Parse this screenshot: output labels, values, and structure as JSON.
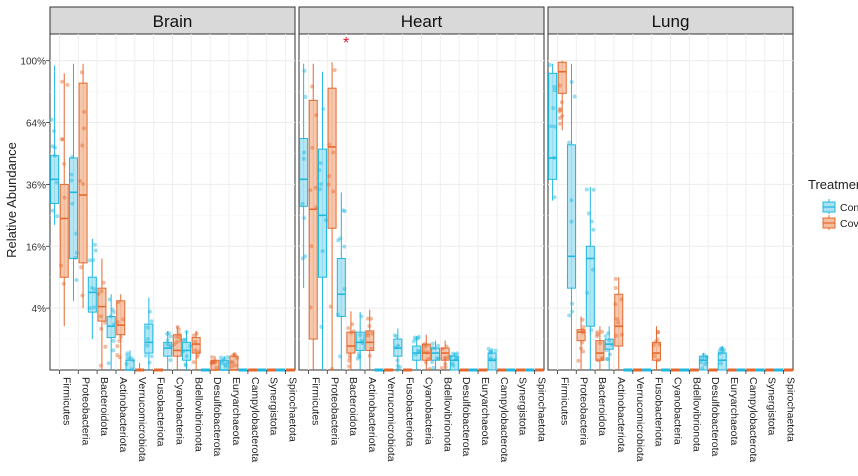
{
  "chart_data": {
    "type": "box",
    "ylabel": "Relative Abundance",
    "y_scale": "sqrt",
    "yticks": [
      {
        "value": 0.04,
        "label": "4%"
      },
      {
        "value": 0.16,
        "label": "16%"
      },
      {
        "value": 0.36,
        "label": "36%"
      },
      {
        "value": 0.64,
        "label": "64%"
      },
      {
        "value": 1.0,
        "label": "100%"
      }
    ],
    "ylim": [
      0,
      1.18
    ],
    "categories": [
      "Firmicutes",
      "Proteobacteria",
      "Bacteroidota",
      "Actinobacteriota",
      "Verrucomicrobiota",
      "Fusobacteriota",
      "Cyanobacteria",
      "Bdellovibrionota",
      "Desulfobacterota",
      "Euryarchaeota",
      "Campylobacterota",
      "Synergistota",
      "Spirochaetota"
    ],
    "legend": {
      "title": "Treatment",
      "position": "right",
      "entries": [
        {
          "name": "Control",
          "color": "#1FB8E0",
          "fill": "#A8E2F2"
        },
        {
          "name": "Covid",
          "color": "#E4692E",
          "fill": "#F4BFA0"
        }
      ]
    },
    "panels": [
      {
        "title": "Brain",
        "annotation": "",
        "groups": [
          {
            "control": [
              0.22,
              0.29,
              0.38,
              0.48,
              0.97
            ],
            "covid": [
              0.02,
              0.09,
              0.24,
              0.36,
              0.92
            ]
          },
          {
            "control": [
              0.05,
              0.13,
              0.33,
              0.47,
              0.98
            ],
            "covid": [
              0.04,
              0.12,
              0.32,
              0.86,
              0.98
            ]
          },
          {
            "control": [
              0.01,
              0.035,
              0.063,
              0.09,
              0.18
            ],
            "covid": [
              0.0,
              0.025,
              0.042,
              0.07,
              0.13
            ]
          },
          {
            "control": [
              0.0,
              0.011,
              0.02,
              0.03,
              0.06
            ],
            "covid": [
              0.0,
              0.013,
              0.021,
              0.05,
              0.06
            ]
          },
          {
            "control": [
              0.0,
              0.0,
              0.0,
              0.001,
              0.004
            ],
            "covid": [
              0.0,
              0.0,
              0.0,
              0.0,
              0.0005
            ]
          },
          {
            "control": [
              0.0,
              0.003,
              0.008,
              0.022,
              0.055
            ],
            "covid": [
              0.0,
              0.0,
              0.0,
              0.0,
              0.0
            ]
          },
          {
            "control": [
              0.0,
              0.002,
              0.005,
              0.008,
              0.016
            ],
            "covid": [
              0.0,
              0.002,
              0.004,
              0.013,
              0.02
            ]
          },
          {
            "control": [
              0.0,
              0.001,
              0.004,
              0.008,
              0.016
            ],
            "covid": [
              0.0,
              0.003,
              0.007,
              0.011,
              0.016
            ]
          },
          {
            "control": [
              0.0,
              0.0,
              0.0,
              0.0,
              0.0
            ],
            "covid": [
              0.0,
              0.0,
              0.0,
              0.001,
              0.002
            ]
          },
          {
            "control": [
              0.0,
              0.0,
              0.0,
              0.001,
              0.002
            ],
            "covid": [
              0.0,
              0.0,
              0.0,
              0.002,
              0.003
            ]
          },
          {
            "control": [
              0.0,
              0.0,
              0.0,
              0.0,
              0.0
            ],
            "covid": [
              0.0,
              0.0,
              0.0,
              0.0,
              0.0
            ]
          },
          {
            "control": [
              0.0,
              0.0,
              0.0,
              0.0,
              0.0
            ],
            "covid": [
              0.0,
              0.0,
              0.0,
              0.0,
              0.0
            ]
          },
          {
            "control": [
              0.0,
              0.0,
              0.0,
              0.0,
              0.0
            ],
            "covid": [
              0.0,
              0.0,
              0.0,
              0.0,
              0.0
            ]
          }
        ]
      },
      {
        "title": "Heart",
        "annotation": "*",
        "groups": [
          {
            "control": [
              0.07,
              0.28,
              0.38,
              0.56,
              0.98
            ],
            "covid": [
              0.0,
              0.01,
              0.27,
              0.76,
              0.98
            ]
          },
          {
            "control": [
              0.0,
              0.09,
              0.25,
              0.51,
              0.93
            ],
            "covid": [
              0.0,
              0.21,
              0.52,
              0.83,
              0.99
            ]
          },
          {
            "control": [
              0.0,
              0.03,
              0.06,
              0.13,
              0.33
            ],
            "covid": [
              0.0,
              0.003,
              0.006,
              0.015,
              0.036
            ]
          },
          {
            "control": [
              0.0,
              0.004,
              0.008,
              0.015,
              0.035
            ],
            "covid": [
              0.0,
              0.004,
              0.008,
              0.016,
              0.038
            ]
          },
          {
            "control": [
              0.0,
              0.0,
              0.0,
              0.0,
              0.0
            ],
            "covid": [
              0.0,
              0.0,
              0.0,
              0.0,
              0.0
            ]
          },
          {
            "control": [
              0.0,
              0.002,
              0.005,
              0.01,
              0.018
            ],
            "covid": [
              0.0,
              0.0,
              0.0,
              0.0,
              0.0
            ]
          },
          {
            "control": [
              0.0,
              0.001,
              0.003,
              0.006,
              0.012
            ],
            "covid": [
              0.0,
              0.001,
              0.003,
              0.007,
              0.013
            ]
          },
          {
            "control": [
              0.0,
              0.001,
              0.003,
              0.005,
              0.009
            ],
            "covid": [
              0.0,
              0.001,
              0.003,
              0.005,
              0.009
            ]
          },
          {
            "control": [
              0.0,
              0.0,
              0.001,
              0.002,
              0.003
            ],
            "covid": [
              0.0,
              0.0,
              0.0,
              0.0,
              0.0
            ]
          },
          {
            "control": [
              0.0,
              0.0,
              0.0,
              0.0,
              0.0
            ],
            "covid": [
              0.0,
              0.0,
              0.0,
              0.0,
              0.0
            ]
          },
          {
            "control": [
              0.0,
              0.0,
              0.001,
              0.003,
              0.005
            ],
            "covid": [
              0.0,
              0.0,
              0.0,
              0.0,
              0.0
            ]
          },
          {
            "control": [
              0.0,
              0.0,
              0.0,
              0.0,
              0.0
            ],
            "covid": [
              0.0,
              0.0,
              0.0,
              0.0,
              0.0
            ]
          },
          {
            "control": [
              0.0,
              0.0,
              0.0,
              0.0,
              0.0
            ],
            "covid": [
              0.0,
              0.0,
              0.0,
              0.0,
              0.0
            ]
          }
        ]
      },
      {
        "title": "Lung",
        "annotation": "",
        "groups": [
          {
            "control": [
              0.3,
              0.38,
              0.47,
              0.92,
              0.98
            ],
            "covid": [
              0.6,
              0.8,
              0.93,
              0.99,
              1.0
            ]
          },
          {
            "control": [
              0.0,
              0.07,
              0.135,
              0.53,
              0.98
            ],
            "covid": [
              0.0,
              0.009,
              0.015,
              0.017,
              0.03
            ]
          },
          {
            "control": [
              0.0,
              0.02,
              0.13,
              0.16,
              0.35
            ],
            "covid": [
              0.0,
              0.001,
              0.003,
              0.009,
              0.02
            ]
          },
          {
            "control": [
              0.0,
              0.0045,
              0.007,
              0.01,
              0.02
            ],
            "covid": [
              0.0,
              0.006,
              0.02,
              0.06,
              0.09
            ]
          },
          {
            "control": [
              0.0,
              0.0,
              0.0,
              0.0,
              0.0
            ],
            "covid": [
              0.0,
              0.0,
              0.0,
              0.0,
              0.0
            ]
          },
          {
            "control": [
              0.0,
              0.0,
              0.0,
              0.0,
              0.0
            ],
            "covid": [
              0.0,
              0.001,
              0.003,
              0.008,
              0.02
            ]
          },
          {
            "control": [
              0.0,
              0.0,
              0.0,
              0.0,
              0.0
            ],
            "covid": [
              0.0,
              0.0,
              0.0,
              0.0,
              0.0
            ]
          },
          {
            "control": [
              0.0,
              0.0,
              0.0,
              0.0,
              0.0
            ],
            "covid": [
              0.0,
              0.0,
              0.0,
              0.0,
              0.0
            ]
          },
          {
            "control": [
              0.0,
              0.0,
              0.001,
              0.002,
              0.003
            ],
            "covid": [
              0.0,
              0.0,
              0.0,
              0.0,
              0.0
            ]
          },
          {
            "control": [
              0.0,
              0.0,
              0.001,
              0.003,
              0.006
            ],
            "covid": [
              0.0,
              0.0,
              0.0,
              0.0,
              0.0
            ]
          },
          {
            "control": [
              0.0,
              0.0,
              0.0,
              0.0,
              0.0
            ],
            "covid": [
              0.0,
              0.0,
              0.0,
              0.0,
              0.0
            ]
          },
          {
            "control": [
              0.0,
              0.0,
              0.0,
              0.0,
              0.0
            ],
            "covid": [
              0.0,
              0.0,
              0.0,
              0.0,
              0.0
            ]
          },
          {
            "control": [
              0.0,
              0.0,
              0.0,
              0.0,
              0.0
            ],
            "covid": [
              0.0,
              0.0,
              0.0,
              0.0,
              0.0
            ]
          }
        ]
      }
    ]
  }
}
